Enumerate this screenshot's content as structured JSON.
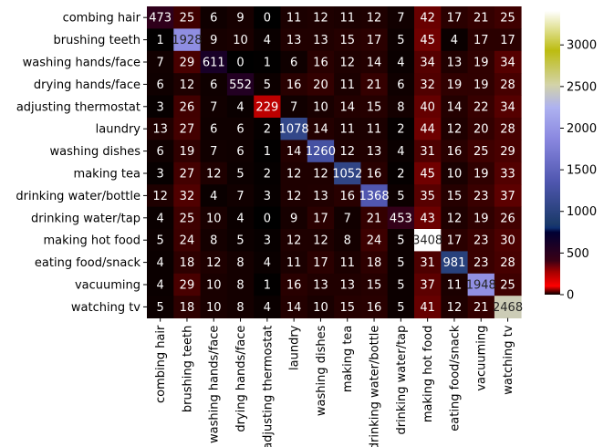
{
  "chart_data": {
    "type": "heatmap",
    "title": "",
    "xlabel": "",
    "ylabel": "",
    "labels": [
      "combing hair",
      "brushing teeth",
      "washing hands/face",
      "drying hands/face",
      "adjusting thermostat",
      "laundry",
      "washing dishes",
      "making tea",
      "drinking water/bottle",
      "drinking water/tap",
      "making hot food",
      "eating food/snack",
      "vacuuming",
      "watching tv"
    ],
    "matrix": [
      [
        473,
        25,
        6,
        9,
        0,
        11,
        12,
        11,
        12,
        7,
        42,
        17,
        21,
        25
      ],
      [
        1,
        1928,
        9,
        10,
        4,
        13,
        13,
        15,
        17,
        5,
        45,
        4,
        17,
        17
      ],
      [
        7,
        29,
        611,
        0,
        1,
        6,
        16,
        12,
        14,
        4,
        34,
        13,
        19,
        34
      ],
      [
        6,
        12,
        6,
        552,
        5,
        16,
        20,
        11,
        21,
        6,
        32,
        19,
        19,
        28
      ],
      [
        3,
        26,
        7,
        4,
        229,
        7,
        10,
        14,
        15,
        8,
        40,
        14,
        22,
        34
      ],
      [
        13,
        27,
        6,
        6,
        2,
        1078,
        14,
        11,
        11,
        2,
        44,
        12,
        20,
        28
      ],
      [
        6,
        19,
        7,
        6,
        1,
        14,
        1260,
        12,
        13,
        4,
        31,
        16,
        25,
        29
      ],
      [
        3,
        27,
        12,
        5,
        2,
        12,
        12,
        1052,
        16,
        2,
        45,
        10,
        19,
        33
      ],
      [
        12,
        32,
        4,
        7,
        3,
        12,
        13,
        16,
        1368,
        5,
        35,
        15,
        23,
        37
      ],
      [
        4,
        25,
        10,
        4,
        0,
        9,
        17,
        7,
        21,
        453,
        43,
        12,
        19,
        26
      ],
      [
        5,
        24,
        8,
        5,
        3,
        12,
        12,
        8,
        24,
        5,
        3408,
        17,
        23,
        30
      ],
      [
        4,
        18,
        12,
        8,
        4,
        11,
        17,
        11,
        18,
        5,
        31,
        981,
        23,
        28
      ],
      [
        4,
        29,
        10,
        8,
        1,
        16,
        13,
        13,
        15,
        5,
        37,
        11,
        1948,
        25
      ],
      [
        5,
        18,
        10,
        8,
        4,
        14,
        10,
        15,
        16,
        5,
        41,
        12,
        21,
        2468
      ]
    ],
    "colorbar": {
      "min": 0,
      "max": 3408,
      "ticks": [
        0,
        500,
        1000,
        1500,
        2000,
        2500,
        3000
      ],
      "colormap": "gist_stern-like"
    },
    "grid": false
  }
}
